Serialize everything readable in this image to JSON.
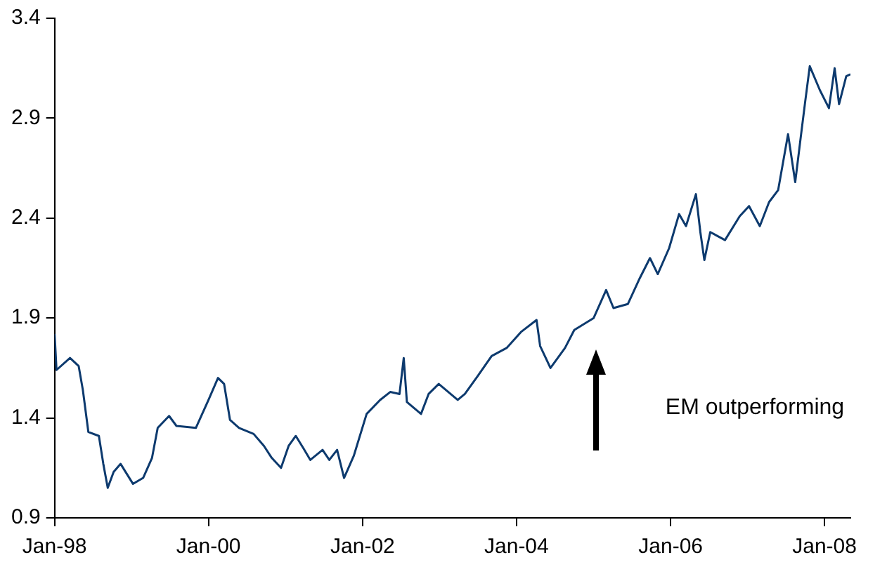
{
  "chart_data": {
    "type": "line",
    "x": [
      "1998-01-01",
      "1998-01-10",
      "1998-03-15",
      "1998-04-25",
      "1998-05-15",
      "1998-06-10",
      "1998-07-30",
      "1998-08-20",
      "1998-09-10",
      "1998-10-08",
      "1998-11-10",
      "1999-01-08",
      "1999-02-25",
      "1999-04-08",
      "1999-05-05",
      "1999-06-28",
      "1999-08-02",
      "1999-11-02",
      "2000-01-01",
      "2000-02-15",
      "2000-03-15",
      "2000-04-12",
      "2000-05-25",
      "2000-08-02",
      "2000-09-20",
      "2000-10-27",
      "2000-12-10",
      "2001-01-15",
      "2001-02-18",
      "2001-03-25",
      "2001-04-28",
      "2001-06-25",
      "2001-07-27",
      "2001-09-02",
      "2001-10-05",
      "2001-11-20",
      "2002-01-20",
      "2002-03-25",
      "2002-05-12",
      "2002-06-25",
      "2002-07-15",
      "2002-07-30",
      "2002-10-05",
      "2002-11-10",
      "2002-12-28",
      "2003-03-28",
      "2003-05-01",
      "2003-07-01",
      "2003-09-05",
      "2003-11-15",
      "2004-01-22",
      "2004-04-05",
      "2004-04-22",
      "2004-06-10",
      "2004-08-18",
      "2004-10-01",
      "2005-01-01",
      "2005-03-01",
      "2005-04-05",
      "2005-06-12",
      "2005-08-08",
      "2005-09-25",
      "2005-11-01",
      "2005-12-25",
      "2006-02-10",
      "2006-03-15",
      "2006-05-01",
      "2006-05-22",
      "2006-06-10",
      "2006-07-08",
      "2006-09-16",
      "2006-11-25",
      "2007-01-08",
      "2007-02-28",
      "2007-04-13",
      "2007-05-26",
      "2007-07-12",
      "2007-08-15",
      "2007-09-12",
      "2007-10-01",
      "2007-10-23",
      "2007-12-10",
      "2008-01-22",
      "2008-02-18",
      "2008-03-10",
      "2008-04-13",
      "2008-05-03"
    ],
    "series": [
      {
        "color": "#0d3a6e",
        "values": [
          1.82,
          1.64,
          1.7,
          1.66,
          1.54,
          1.33,
          1.31,
          1.17,
          1.05,
          1.13,
          1.17,
          1.07,
          1.1,
          1.2,
          1.35,
          1.41,
          1.36,
          1.35,
          1.49,
          1.6,
          1.57,
          1.39,
          1.35,
          1.32,
          1.26,
          1.2,
          1.15,
          1.26,
          1.31,
          1.25,
          1.19,
          1.24,
          1.19,
          1.24,
          1.1,
          1.21,
          1.42,
          1.49,
          1.53,
          1.52,
          1.7,
          1.48,
          1.42,
          1.52,
          1.57,
          1.49,
          1.52,
          1.61,
          1.71,
          1.75,
          1.83,
          1.89,
          1.76,
          1.65,
          1.75,
          1.84,
          1.9,
          2.04,
          1.95,
          1.97,
          2.1,
          2.2,
          2.12,
          2.25,
          2.42,
          2.36,
          2.52,
          2.33,
          2.19,
          2.33,
          2.29,
          2.41,
          2.46,
          2.36,
          2.48,
          2.54,
          2.82,
          2.58,
          2.82,
          2.98,
          3.16,
          3.04,
          2.95,
          3.15,
          2.97,
          3.11,
          3.12
        ]
      }
    ],
    "xlim": [
      "1998-01-01",
      "2008-05-03"
    ],
    "xticks": [
      {
        "value": "1998-01-01",
        "label": "Jan-98"
      },
      {
        "value": "2000-01-01",
        "label": "Jan-00"
      },
      {
        "value": "2002-01-01",
        "label": "Jan-02"
      },
      {
        "value": "2004-01-01",
        "label": "Jan-04"
      },
      {
        "value": "2006-01-01",
        "label": "Jan-06"
      },
      {
        "value": "2008-01-01",
        "label": "Jan-08"
      }
    ],
    "ylim": [
      0.9,
      3.4
    ],
    "yticks": [
      0.9,
      1.4,
      1.9,
      2.4,
      2.9,
      3.4
    ],
    "grid": false,
    "legend": false,
    "marker": "none",
    "line_style": "solid",
    "annotations": [
      "EM outperforming"
    ]
  }
}
